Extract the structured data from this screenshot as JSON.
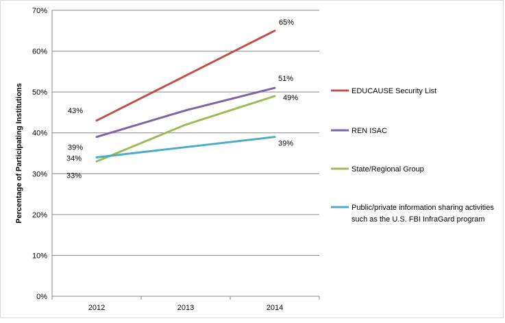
{
  "chart_data": {
    "type": "line",
    "title": "",
    "xlabel": "",
    "ylabel": "Percentage of Participating Institutions",
    "x": [
      "2012",
      "2013",
      "2014"
    ],
    "ylim": [
      0,
      70
    ],
    "yticks": [
      "0%",
      "10%",
      "20%",
      "30%",
      "40%",
      "50%",
      "60%",
      "70%"
    ],
    "grid": "horizontal",
    "legend_position": "right",
    "series": [
      {
        "name": "EDUCAUSE Security List",
        "color": "#c0504d",
        "values": [
          43,
          54,
          65
        ],
        "labels": [
          "43%",
          "",
          "65%"
        ]
      },
      {
        "name": "REN ISAC",
        "color": "#8064a2",
        "values": [
          39,
          45.5,
          51
        ],
        "labels": [
          "39%",
          "",
          "51%"
        ]
      },
      {
        "name": "State/Regional Group",
        "color": "#9bbb59",
        "values": [
          33,
          42,
          49
        ],
        "labels": [
          "33%",
          "",
          "49%"
        ]
      },
      {
        "name": "Public/private information sharing activities such as the U.S. FBI InfraGard program",
        "color": "#4bacc6",
        "values": [
          34,
          36.5,
          39
        ],
        "labels": [
          "34%",
          "",
          "39%"
        ]
      }
    ]
  }
}
